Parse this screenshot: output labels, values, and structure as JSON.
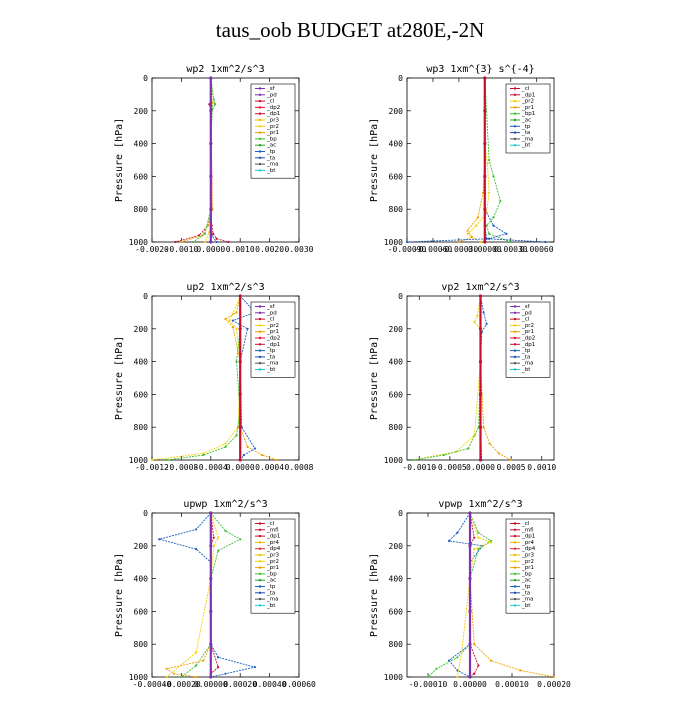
{
  "figure_title": "taus_oob  BUDGET at280E,-2N",
  "colors": {
    "sf": "#7f2fb0",
    "pd": "#7f2fb0",
    "cl": "#c8102e",
    "dp2": "#e8102e",
    "dp1": "#c8102e",
    "pr1": "#f0a000",
    "pr2": "#f5d000",
    "pr3": "#f0c000",
    "pr4": "#f0b000",
    "dp4": "#e03030",
    "mfl": "#c8102e",
    "bp": "#3cc030",
    "bp1": "#3cc030",
    "ac": "#20a020",
    "tp": "#1a60c0",
    "ta": "#1a4fb0",
    "ma": "#555555",
    "bt": "#20c8d0"
  },
  "chart_data": [
    {
      "type": "line",
      "title": "wp2  1xm^2/s^3",
      "ylabel": "Pressure [hPa]",
      "xlim": [
        -0.002,
        0.003
      ],
      "ylim": [
        1000,
        0
      ],
      "xticks": [
        "-0.0020",
        "-0.0010",
        "0.0000",
        "0.0010",
        "0.0020",
        "0.0030"
      ],
      "xtick_values": [
        -0.002,
        -0.001,
        0.0,
        0.001,
        0.002,
        0.003
      ],
      "yticks": [
        "0",
        "200",
        "400",
        "600",
        "800",
        "1000"
      ],
      "legend": [
        "_sf",
        "_pd",
        "_cl",
        "_dp2",
        "_dp1",
        "_pr3",
        "_pr2",
        "_pr1",
        "_bp",
        "_ac",
        "_tp",
        "_ta",
        "_ma",
        "_bt"
      ],
      "legend_position": "top-right",
      "series": [
        {
          "name": "_cl",
          "color": "#c8102e",
          "x": [
            0,
            0,
            1e-05,
            -5e-05,
            0,
            2e-05,
            5e-05,
            -0.0001,
            -0.0004,
            -0.0012
          ],
          "y": [
            0,
            100,
            140,
            160,
            200,
            400,
            800,
            900,
            960,
            1000
          ]
        },
        {
          "name": "_dp1",
          "color": "#c8102e",
          "x": [
            0,
            0,
            0,
            0,
            3e-05,
            8e-05,
            0.0002,
            0.0006
          ],
          "y": [
            0,
            200,
            400,
            800,
            900,
            950,
            980,
            1000
          ]
        },
        {
          "name": "_pr1",
          "color": "#f0a000",
          "x": [
            0,
            0,
            5e-05,
            1e-05,
            0,
            5e-05,
            -0.0001,
            -0.0003,
            -0.001
          ],
          "y": [
            0,
            120,
            150,
            190,
            400,
            800,
            900,
            960,
            1000
          ]
        },
        {
          "name": "_pr2",
          "color": "#f5d000",
          "x": [
            0,
            0.0001,
            2e-05,
            0,
            3e-05,
            -5e-05,
            -0.0002
          ],
          "y": [
            0,
            150,
            190,
            400,
            800,
            940,
            1000
          ]
        },
        {
          "name": "_bp",
          "color": "#3cc030",
          "x": [
            0,
            0.0001,
            0.00015,
            5e-05,
            0,
            0,
            -0.0002,
            -0.0006
          ],
          "y": [
            0,
            130,
            160,
            190,
            400,
            800,
            950,
            1000
          ]
        },
        {
          "name": "_tp",
          "color": "#1a60c0",
          "x": [
            0,
            0,
            2e-05,
            0,
            0,
            3e-05,
            0.0002
          ],
          "y": [
            0,
            150,
            170,
            400,
            800,
            960,
            1000
          ]
        },
        {
          "name": "_pd",
          "color": "#7f2fb0",
          "x": [
            0,
            0,
            0,
            0,
            0,
            0
          ],
          "y": [
            0,
            200,
            400,
            600,
            800,
            1000
          ]
        }
      ]
    },
    {
      "type": "line",
      "title": "wp3  1xm^{3} s^{-4}",
      "ylabel": "Pressure [hPa]",
      "xlim": [
        -0.0009,
        0.0008
      ],
      "ylim": [
        1000,
        0
      ],
      "xticks": [
        "-0.00090",
        "-0.00060",
        "-0.00030",
        "0.00000",
        "0.00030",
        "0.00060"
      ],
      "xtick_values": [
        -0.0009,
        -0.0006,
        -0.0003,
        0.0,
        0.0003,
        0.0006
      ],
      "yticks": [
        "0",
        "200",
        "400",
        "600",
        "800",
        "1000"
      ],
      "legend": [
        "_cl",
        "_dp1",
        "_pr2",
        "_pr1",
        "_bp1",
        "_ac",
        "_tp",
        "_ta",
        "_ma",
        "_bt"
      ],
      "legend_position": "top-right",
      "series": [
        {
          "name": "_pr2",
          "color": "#f5d000",
          "x": [
            0,
            0,
            3e-05,
            5e-05,
            2e-05,
            -0.0001,
            -0.0002,
            -5e-05
          ],
          "y": [
            0,
            400,
            520,
            700,
            820,
            900,
            950,
            1000
          ]
        },
        {
          "name": "_pr1",
          "color": "#f0a000",
          "x": [
            0,
            0,
            -2e-05,
            -8e-05,
            -0.0002,
            -0.00015,
            -0.0003
          ],
          "y": [
            0,
            500,
            700,
            850,
            930,
            970,
            1000
          ]
        },
        {
          "name": "_bp1",
          "color": "#3cc030",
          "x": [
            0,
            5e-05,
            0.0001,
            0.00018,
            0.0001,
            2e-05,
            5e-05,
            0.0003
          ],
          "y": [
            0,
            500,
            600,
            750,
            850,
            900,
            950,
            1000
          ]
        },
        {
          "name": "_tp",
          "color": "#1a60c0",
          "x": [
            0,
            0,
            0.0001,
            0.00025,
            5e-05,
            -0.0009
          ],
          "y": [
            0,
            800,
            900,
            950,
            980,
            1000
          ]
        },
        {
          "name": "_ta",
          "color": "#1a4fb0",
          "x": [
            0,
            0,
            2e-05,
            0.0007
          ],
          "y": [
            0,
            900,
            980,
            1000
          ]
        },
        {
          "name": "_cl",
          "color": "#c8102e",
          "x": [
            0,
            0,
            0,
            0,
            0,
            0
          ],
          "y": [
            0,
            200,
            400,
            600,
            800,
            1000
          ]
        }
      ]
    },
    {
      "type": "line",
      "title": "up2  1xm^2/s^3",
      "ylabel": "Pressure [hPa]",
      "xlim": [
        -0.0012,
        0.0008
      ],
      "ylim": [
        1000,
        0
      ],
      "xticks": [
        "-0.0012",
        "-0.0008",
        "-0.0004",
        "0.0000",
        "0.0004",
        "0.0008"
      ],
      "xtick_values": [
        -0.0012,
        -0.0008,
        -0.0004,
        0.0,
        0.0004,
        0.0008
      ],
      "yticks": [
        "0",
        "200",
        "400",
        "600",
        "800",
        "1000"
      ],
      "legend": [
        "_sf",
        "_pd",
        "_cl",
        "_pr2",
        "_pr1",
        "_dp2",
        "_dp1",
        "_tp",
        "_ta",
        "_ma",
        "_bt"
      ],
      "legend_position": "top-right",
      "series": [
        {
          "name": "_pr2",
          "color": "#f5d000",
          "x": [
            0,
            -0.0001,
            -0.00015,
            -5e-05,
            0,
            -3e-05,
            -0.0002,
            -0.0005,
            -0.0012
          ],
          "y": [
            0,
            110,
            150,
            200,
            400,
            800,
            900,
            960,
            1000
          ]
        },
        {
          "name": "_pr1",
          "color": "#f0a000",
          "x": [
            0,
            -5e-05,
            -0.0002,
            -0.0001,
            0,
            0,
            0.0001,
            0.0003,
            0.0005
          ],
          "y": [
            0,
            100,
            140,
            190,
            400,
            800,
            920,
            970,
            1000
          ]
        },
        {
          "name": "_dp1",
          "color": "#3cc030",
          "x": [
            0,
            0,
            -5e-05,
            0,
            -5e-05,
            -0.0002,
            -0.0005,
            -0.001
          ],
          "y": [
            0,
            200,
            400,
            700,
            850,
            920,
            970,
            1000
          ]
        },
        {
          "name": "_tp",
          "color": "#1a60c0",
          "x": [
            0,
            0.0002,
            -0.0001,
            0.0001,
            0,
            2e-05,
            0.0002,
            5e-05,
            0
          ],
          "y": [
            0,
            100,
            150,
            200,
            400,
            800,
            930,
            970,
            1000
          ]
        },
        {
          "name": "_pd",
          "color": "#c8102e",
          "x": [
            0,
            0,
            0,
            0,
            0,
            0
          ],
          "y": [
            0,
            200,
            400,
            600,
            800,
            1000
          ]
        }
      ]
    },
    {
      "type": "line",
      "title": "vp2  1xm^2/s^3",
      "ylabel": "Pressure [hPa]",
      "xlim": [
        -0.0012,
        0.0012
      ],
      "ylim": [
        1000,
        0
      ],
      "xticks": [
        "-0.0010",
        "-0.0005",
        "0.0000",
        "0.0005",
        "0.0010"
      ],
      "xtick_values": [
        -0.001,
        -0.0005,
        0.0,
        0.0005,
        0.001
      ],
      "yticks": [
        "0",
        "200",
        "400",
        "600",
        "800",
        "1000"
      ],
      "legend": [
        "_sf",
        "_pd",
        "_cl",
        "_pr2",
        "_pr1",
        "_dp2",
        "_dp1",
        "_tp",
        "_ta",
        "_ma",
        "_bt"
      ],
      "legend_position": "top-right",
      "series": [
        {
          "name": "_pr2",
          "color": "#f5d000",
          "x": [
            0,
            -5e-05,
            -0.0001,
            0,
            0,
            -0.0001,
            -0.0004,
            -0.0011
          ],
          "y": [
            0,
            120,
            160,
            200,
            400,
            850,
            950,
            1000
          ]
        },
        {
          "name": "_pr1",
          "color": "#f0a000",
          "x": [
            0,
            0,
            0,
            5e-05,
            0.00015,
            0.0003,
            0.0005
          ],
          "y": [
            0,
            200,
            400,
            800,
            900,
            960,
            1000
          ]
        },
        {
          "name": "_dp1",
          "color": "#3cc030",
          "x": [
            0,
            0,
            -3e-05,
            -0.0002,
            -0.0006,
            -0.0011
          ],
          "y": [
            0,
            400,
            800,
            930,
            970,
            1000
          ]
        },
        {
          "name": "_tp",
          "color": "#1a60c0",
          "x": [
            0,
            5e-05,
            0.0001,
            2e-05,
            0,
            0,
            2e-05
          ],
          "y": [
            0,
            100,
            170,
            220,
            400,
            800,
            1000
          ]
        },
        {
          "name": "_pd",
          "color": "#c8102e",
          "x": [
            0,
            0,
            0,
            0,
            0,
            0
          ],
          "y": [
            0,
            200,
            400,
            600,
            800,
            1000
          ]
        }
      ]
    },
    {
      "type": "line",
      "title": "upwp  1xm^2/s^3",
      "ylabel": "Pressure [hPa]",
      "xlim": [
        -0.0004,
        0.0006
      ],
      "ylim": [
        1000,
        0
      ],
      "xticks": [
        "-0.00040",
        "-0.00020",
        "0.00000",
        "0.00020",
        "0.00040",
        "0.00060"
      ],
      "xtick_values": [
        -0.0004,
        -0.0002,
        0.0,
        0.0002,
        0.0004,
        0.0006
      ],
      "yticks": [
        "0",
        "200",
        "400",
        "600",
        "800",
        "1000"
      ],
      "legend": [
        "_cl",
        "_mfl",
        "_dp1",
        "_pr4",
        "_dp4",
        "_pr3",
        "_pr2",
        "_pr1",
        "_bp",
        "_ac",
        "_tp",
        "_ta",
        "_ma",
        "_bt"
      ],
      "legend_position": "top-right",
      "series": [
        {
          "name": "_tp",
          "color": "#1a60c0",
          "x": [
            0,
            -0.0001,
            -0.00035,
            -0.0001,
            0,
            0,
            5e-05,
            0.0003,
            0.0001,
            0
          ],
          "y": [
            0,
            100,
            160,
            220,
            300,
            800,
            880,
            940,
            980,
            1000
          ]
        },
        {
          "name": "_bp",
          "color": "#3cc030",
          "x": [
            0,
            0.0001,
            0.0002,
            5e-05,
            0,
            0,
            -0.0001,
            -0.0002
          ],
          "y": [
            0,
            110,
            160,
            230,
            400,
            800,
            930,
            1000
          ]
        },
        {
          "name": "_pr1",
          "color": "#f0a000",
          "x": [
            0,
            0,
            0,
            -5e-05,
            -0.0003,
            -0.00025,
            -0.0001
          ],
          "y": [
            0,
            400,
            800,
            900,
            950,
            980,
            1000
          ]
        },
        {
          "name": "_pr2",
          "color": "#f5d000",
          "x": [
            0,
            5e-05,
            2e-05,
            0,
            -0.0001,
            -0.0003
          ],
          "y": [
            0,
            150,
            200,
            400,
            850,
            1000
          ]
        },
        {
          "name": "_dp1",
          "color": "#c8102e",
          "x": [
            0,
            2e-05,
            0,
            0,
            5e-05,
            0,
            0
          ],
          "y": [
            0,
            150,
            200,
            800,
            940,
            980,
            1000
          ]
        },
        {
          "name": "_cl",
          "color": "#7f2fb0",
          "x": [
            0,
            0,
            0,
            0,
            0,
            0
          ],
          "y": [
            0,
            200,
            400,
            600,
            800,
            1000
          ]
        }
      ]
    },
    {
      "type": "line",
      "title": "vpwp  1xm^2/s^3",
      "ylabel": "Pressure [hPa]",
      "xlim": [
        -0.00015,
        0.0002
      ],
      "ylim": [
        1000,
        0
      ],
      "xticks": [
        "-0.00010",
        "0.00000",
        "0.00010",
        "0.00020"
      ],
      "xtick_values": [
        -0.0001,
        0.0,
        0.0001,
        0.0002
      ],
      "yticks": [
        "0",
        "200",
        "400",
        "600",
        "800",
        "1000"
      ],
      "legend": [
        "_cl",
        "_mfl",
        "_dp1",
        "_pr4",
        "_dp4",
        "_pr3",
        "_pr2",
        "_pr1",
        "_bp",
        "_ac",
        "_tp",
        "_ta",
        "_ma",
        "_bt"
      ],
      "legend_position": "top-right",
      "series": [
        {
          "name": "_tp",
          "color": "#1a60c0",
          "x": [
            0,
            -3e-05,
            -5e-05,
            3e-05,
            0,
            0,
            -5e-05,
            -3e-05,
            0
          ],
          "y": [
            0,
            120,
            170,
            200,
            300,
            800,
            900,
            960,
            1000
          ]
        },
        {
          "name": "_bp",
          "color": "#3cc030",
          "x": [
            0,
            2e-05,
            5e-05,
            2e-05,
            0,
            0,
            -3e-05,
            -8e-05,
            -0.0001
          ],
          "y": [
            0,
            120,
            170,
            220,
            400,
            800,
            880,
            950,
            1000
          ]
        },
        {
          "name": "_pr1",
          "color": "#f0a000",
          "x": [
            0,
            0,
            1e-05,
            5e-05,
            0.00012,
            0.0002
          ],
          "y": [
            0,
            400,
            800,
            900,
            960,
            1000
          ]
        },
        {
          "name": "_pr2",
          "color": "#f5d000",
          "x": [
            0,
            2e-05,
            5e-05,
            1e-05,
            0,
            -2e-05,
            -3e-05
          ],
          "y": [
            0,
            150,
            180,
            220,
            400,
            850,
            1000
          ]
        },
        {
          "name": "_dp1",
          "color": "#c8102e",
          "x": [
            0,
            1e-05,
            0,
            0,
            2e-05,
            1e-05,
            0
          ],
          "y": [
            0,
            150,
            200,
            800,
            930,
            980,
            1000
          ]
        },
        {
          "name": "_cl",
          "color": "#7f2fb0",
          "x": [
            0,
            0,
            0,
            0,
            0,
            0
          ],
          "y": [
            0,
            200,
            400,
            600,
            800,
            1000
          ]
        }
      ]
    }
  ]
}
